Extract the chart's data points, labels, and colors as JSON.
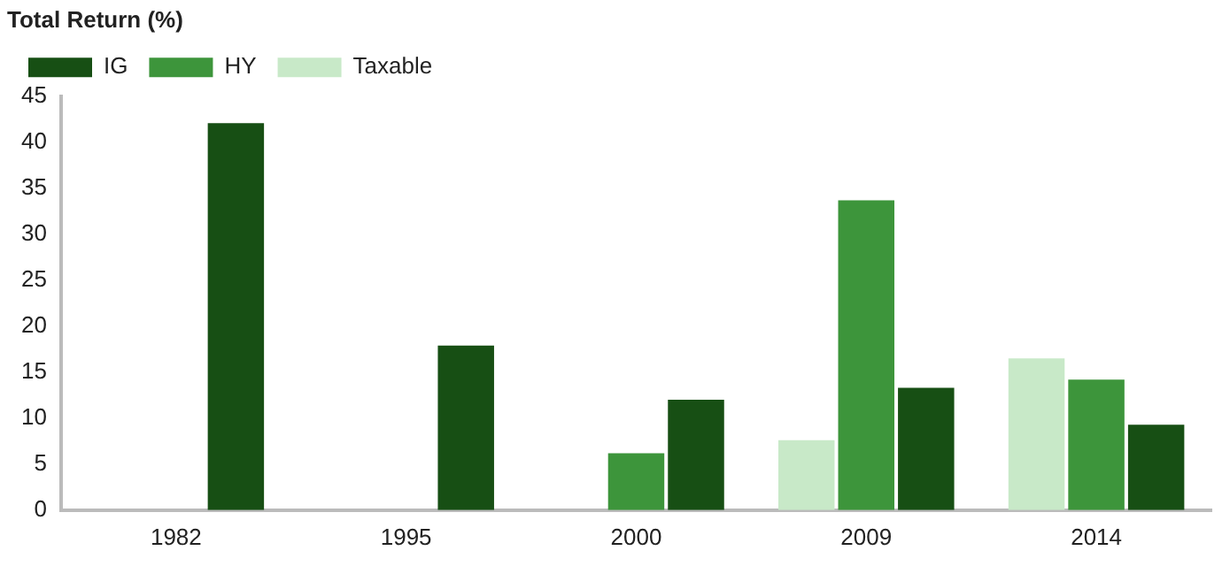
{
  "chart_data": {
    "type": "bar",
    "ylabel": "Total Return (%)",
    "categories": [
      "1982",
      "1995",
      "2000",
      "2009",
      "2014"
    ],
    "series": [
      {
        "name": "Taxable",
        "color": "#c8e9c8",
        "values": [
          null,
          null,
          null,
          7.6,
          16.5
        ]
      },
      {
        "name": "HY",
        "color": "#3d953b",
        "values": [
          null,
          null,
          6.2,
          33.7,
          14.2
        ]
      },
      {
        "name": "IG",
        "color": "#174f14",
        "values": [
          42.1,
          17.9,
          12.0,
          13.3,
          9.3
        ]
      }
    ],
    "ylim": [
      0,
      45
    ],
    "yticks": [
      0,
      5,
      10,
      15,
      20,
      25,
      30,
      35,
      40,
      45
    ],
    "grid": false,
    "legend": "top left"
  }
}
